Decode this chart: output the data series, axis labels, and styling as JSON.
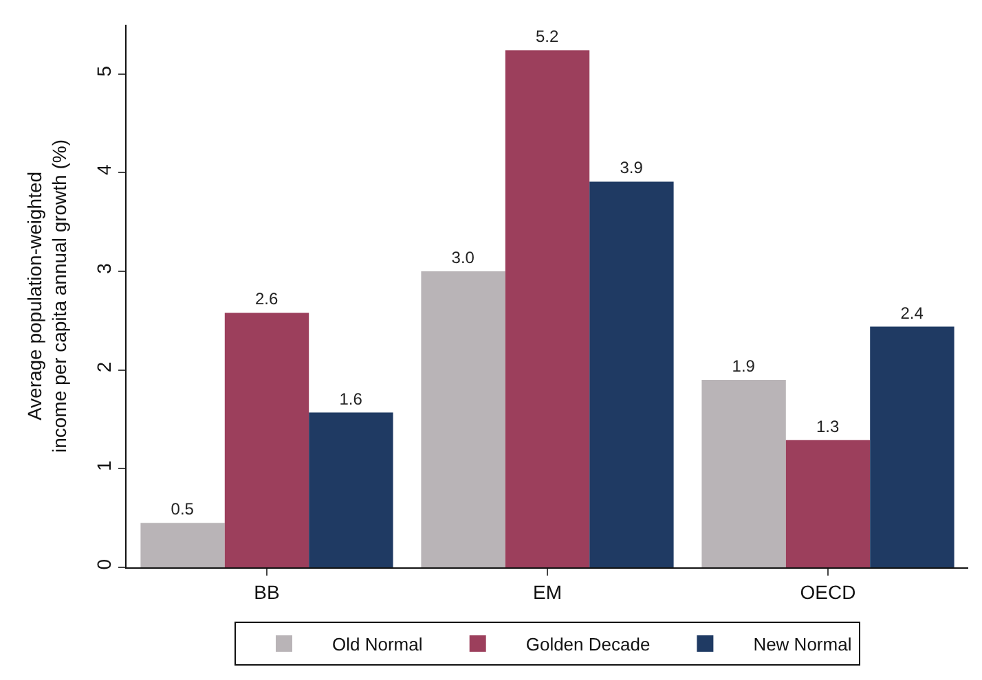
{
  "chart_data": {
    "type": "bar",
    "ylabel": "Average population-weighted\nincome per capita annual growth (%)",
    "categories": [
      "BB",
      "EM",
      "OECD"
    ],
    "series": [
      {
        "name": "Old Normal",
        "color": "#b9b4b7",
        "values": [
          0.45,
          3.0,
          1.9
        ],
        "value_labels": [
          "0.5",
          "3.0",
          "1.9"
        ]
      },
      {
        "name": "Golden Decade",
        "color": "#9c3f5c",
        "values": [
          2.58,
          5.24,
          1.29
        ],
        "value_labels": [
          "2.6",
          "5.2",
          "1.3"
        ]
      },
      {
        "name": "New Normal",
        "color": "#1f3a63",
        "values": [
          1.57,
          3.91,
          2.44
        ],
        "value_labels": [
          "1.6",
          "3.9",
          "2.4"
        ]
      }
    ],
    "ylim": [
      0,
      5.5
    ],
    "yticks": [
      0,
      1,
      2,
      3,
      4,
      5
    ],
    "grid": false,
    "legend": "bottom"
  }
}
